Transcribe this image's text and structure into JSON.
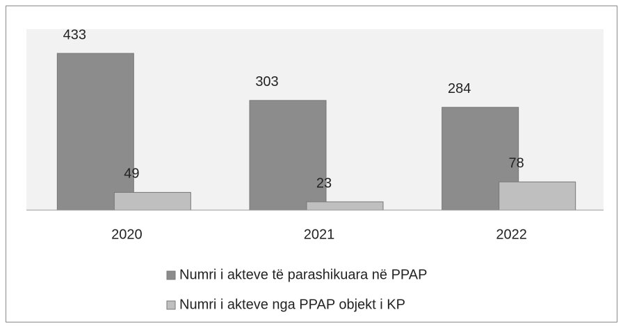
{
  "chart_data": {
    "type": "bar",
    "categories": [
      "2020",
      "2021",
      "2022"
    ],
    "series": [
      {
        "name": "Numri i akteve të parashikuara në PPAP",
        "color": "#8c8c8c",
        "values": [
          433,
          303,
          284
        ]
      },
      {
        "name": "Numri i akteve nga PPAP objekt i KP",
        "color": "#bfbfbf",
        "values": [
          49,
          23,
          78
        ]
      }
    ],
    "ylim": [
      0,
      500
    ]
  }
}
